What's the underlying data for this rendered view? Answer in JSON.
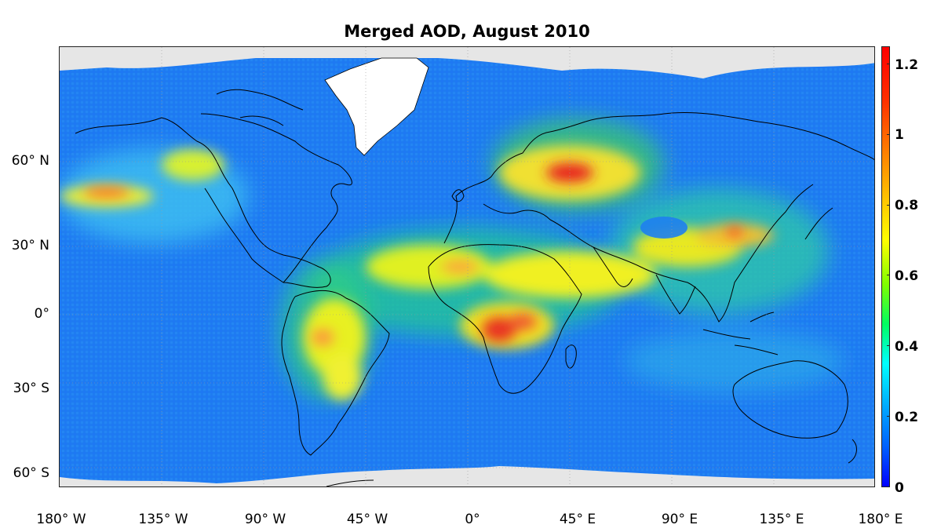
{
  "title": "Merged AOD, August  2010",
  "lat_ticks": [
    {
      "value": 60,
      "label": "60° N"
    },
    {
      "value": 30,
      "label": "30° N"
    },
    {
      "value": 0,
      "label": "0°"
    },
    {
      "value": -30,
      "label": "30° S"
    },
    {
      "value": -60,
      "label": "60° S"
    }
  ],
  "lon_ticks": [
    {
      "value": -180,
      "label": "180° W"
    },
    {
      "value": -135,
      "label": "135° W"
    },
    {
      "value": -90,
      "label": "90° W"
    },
    {
      "value": -45,
      "label": "45° W"
    },
    {
      "value": 0,
      "label": "0°"
    },
    {
      "value": 45,
      "label": "45° E"
    },
    {
      "value": 90,
      "label": "90° E"
    },
    {
      "value": 135,
      "label": "135° E"
    },
    {
      "value": 180,
      "label": "180° E"
    }
  ],
  "colorbar": {
    "min": 0,
    "max": 1.25,
    "ticks": [
      "0",
      "0.2",
      "0.4",
      "0.6",
      "0.8",
      "1",
      "1.2"
    ],
    "colormap": "jet"
  },
  "map_extent": {
    "lon_min": -180,
    "lon_max": 180,
    "lat_min": -66,
    "lat_max": 89
  },
  "colors": {
    "missing": "#e6e6e6",
    "ice": "#ffffff",
    "coastline": "#000000",
    "grid": "#b0b0b0"
  }
}
